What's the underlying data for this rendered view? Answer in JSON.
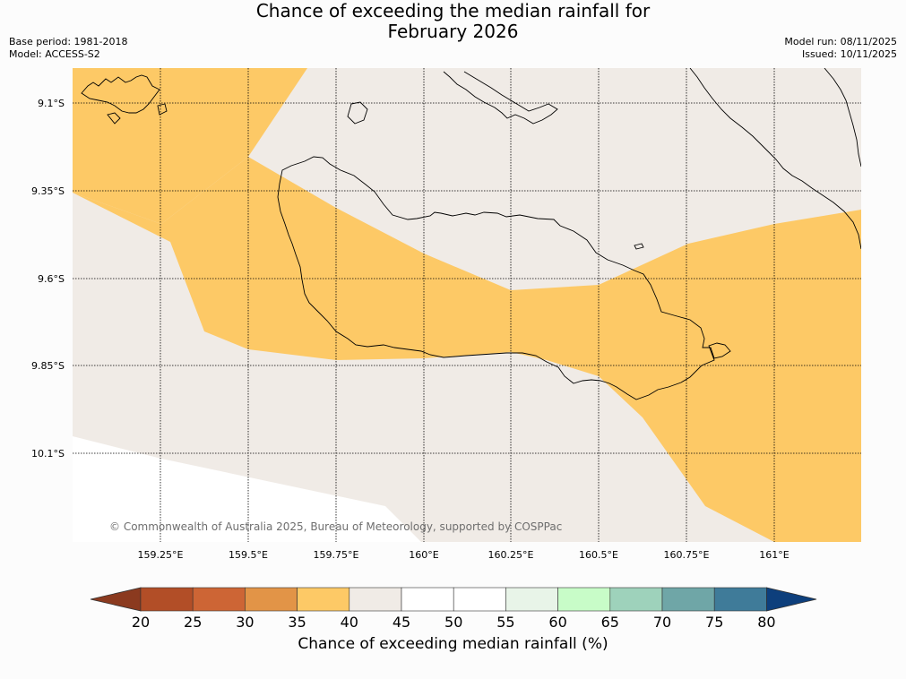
{
  "title": {
    "line1": "Chance of exceeding the median rainfall for",
    "line2": "February 2026"
  },
  "meta": {
    "base_period": "Base period: 1981-2018",
    "model": "Model: ACCESS-S2",
    "model_run": "Model run: 08/11/2025",
    "issued": "Issued: 10/11/2025"
  },
  "map": {
    "lat_labels": [
      "9.1°S",
      "9.35°S",
      "9.6°S",
      "9.85°S",
      "10.1°S"
    ],
    "lon_labels": [
      "159.25°E",
      "159.5°E",
      "159.75°E",
      "160°E",
      "160.25°E",
      "160.5°E",
      "160.75°E",
      "161°E"
    ],
    "copyright": "© Commonwealth of Australia 2025, Bureau of Meteorology, supported by COSPPac",
    "region_colors": {
      "band_35_40": "#fdc966",
      "band_40_45": "#f0ebe6",
      "band_50_55": "#ffffff"
    }
  },
  "colorbar": {
    "ticks": [
      "20",
      "25",
      "30",
      "35",
      "40",
      "45",
      "50",
      "55",
      "60",
      "65",
      "70",
      "75",
      "80"
    ],
    "under_color": "#8b3a1f",
    "over_color": "#0d3f7c",
    "colors": [
      "#b24e27",
      "#cd6535",
      "#e29447",
      "#fdc966",
      "#f0ebe6",
      "#ffffff",
      "#ffffff",
      "#e8f4e8",
      "#c8fcc8",
      "#9ed2bb",
      "#6fa6a7",
      "#3f7b99"
    ],
    "label": "Chance of exceeding median rainfall (%)"
  }
}
